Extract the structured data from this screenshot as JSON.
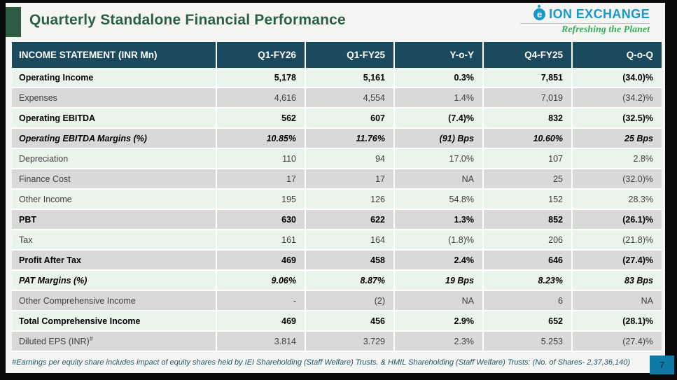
{
  "slide": {
    "title": "Quarterly Standalone Financial Performance",
    "page_number": "7",
    "footnote": "#Earnings per equity share includes impact of equity shares held by IEI Shareholding (Staff Welfare) Trusts. & HMIL Shareholding (Staff Welfare) Trusts: (No. of Shares- 2,37,36,140)"
  },
  "logo": {
    "icon_letter": "e",
    "name": "ION EXCHANGE",
    "tagline": "Refreshing the Planet"
  },
  "colors": {
    "title-green": "#2b5f47",
    "square-green": "#2e5c41",
    "header-bg": "#1b4a5e",
    "row-mint": "#ebf3ed",
    "row-gray": "#d9d9d9",
    "logo-blue": "#1898cc",
    "tagline-green": "#3cad5e",
    "pagebox-blue": "#0d7ba8",
    "footnote-color": "#24566b"
  },
  "chart_data": {
    "type": "table",
    "title": "Quarterly Standalone Financial Performance",
    "columns": [
      "INCOME STATEMENT  (INR Mn)",
      "Q1-FY26",
      "Q1-FY25",
      "Y-o-Y",
      "Q4-FY25",
      "Q-o-Q"
    ],
    "rows": [
      {
        "label": "Operating Income",
        "sup": "",
        "style": "bold",
        "values": [
          "5,178",
          "5,161",
          "0.3%",
          "7,851",
          "(34.0)%"
        ]
      },
      {
        "label": "Expenses",
        "sup": "",
        "style": "regular",
        "values": [
          "4,616",
          "4,554",
          "1.4%",
          "7,019",
          "(34.2)%"
        ]
      },
      {
        "label": "Operating EBITDA",
        "sup": "",
        "style": "bold",
        "values": [
          "562",
          "607",
          "(7.4)%",
          "832",
          "(32.5)%"
        ]
      },
      {
        "label": "Operating EBITDA Margins (%)",
        "sup": "",
        "style": "bold-italic",
        "values": [
          "10.85%",
          "11.76%",
          "(91) Bps",
          "10.60%",
          "25 Bps"
        ]
      },
      {
        "label": "Depreciation",
        "sup": "",
        "style": "regular",
        "values": [
          "110",
          "94",
          "17.0%",
          "107",
          "2.8%"
        ]
      },
      {
        "label": "Finance Cost",
        "sup": "",
        "style": "regular",
        "values": [
          "17",
          "17",
          "NA",
          "25",
          "(32.0)%"
        ]
      },
      {
        "label": "Other Income",
        "sup": "",
        "style": "regular",
        "values": [
          "195",
          "126",
          "54.8%",
          "152",
          "28.3%"
        ]
      },
      {
        "label": "PBT",
        "sup": "",
        "style": "bold",
        "values": [
          "630",
          "622",
          "1.3%",
          "852",
          "(26.1)%"
        ]
      },
      {
        "label": "Tax",
        "sup": "",
        "style": "regular",
        "values": [
          "161",
          "164",
          "(1.8)%",
          "206",
          "(21.8)%"
        ]
      },
      {
        "label": "Profit After Tax",
        "sup": "",
        "style": "bold",
        "values": [
          "469",
          "458",
          "2.4%",
          "646",
          "(27.4)%"
        ]
      },
      {
        "label": "PAT Margins (%)",
        "sup": "",
        "style": "bold-italic",
        "values": [
          "9.06%",
          "8.87%",
          "19 Bps",
          "8.23%",
          "83 Bps"
        ]
      },
      {
        "label": "Other Comprehensive Income",
        "sup": "",
        "style": "regular",
        "values": [
          "-",
          "(2)",
          "NA",
          "6",
          "NA"
        ]
      },
      {
        "label": "Total Comprehensive Income",
        "sup": "",
        "style": "bold",
        "values": [
          "469",
          "456",
          "2.9%",
          "652",
          "(28.1)%"
        ]
      },
      {
        "label": "Diluted EPS (INR)",
        "sup": "#",
        "style": "regular",
        "values": [
          "3.814",
          "3.729",
          "2.3%",
          "5.253",
          "(27.4)%"
        ]
      }
    ]
  }
}
